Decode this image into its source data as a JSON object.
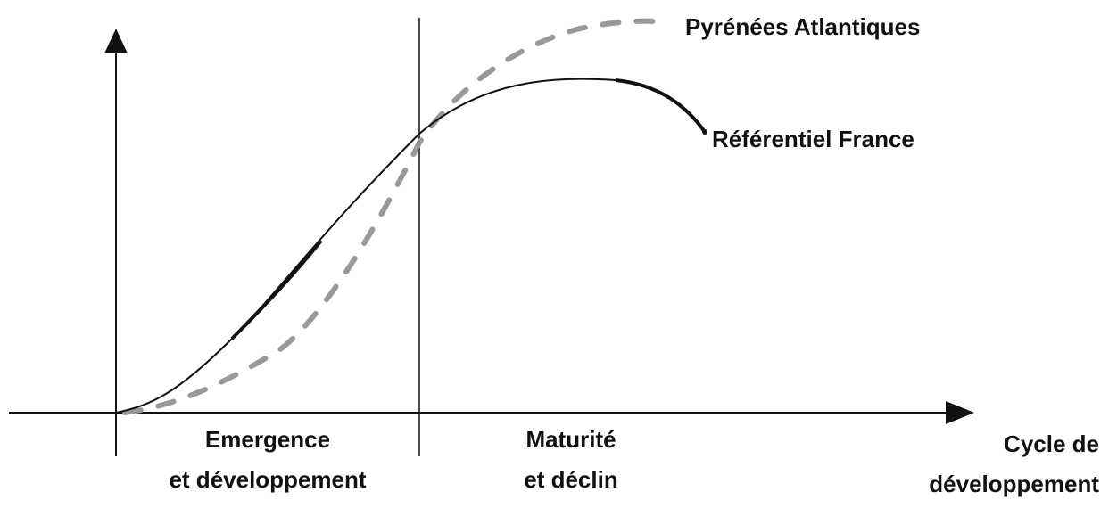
{
  "series_labels": {
    "regional": "Pyrénées Atlantiques",
    "reference": "Référentiel France"
  },
  "phases": [
    {
      "lines": [
        "Emergence",
        "et développement"
      ]
    },
    {
      "lines": [
        "Maturité",
        "et déclin"
      ]
    }
  ],
  "x_axis": {
    "lines": [
      "Cycle de",
      "développement"
    ]
  }
}
